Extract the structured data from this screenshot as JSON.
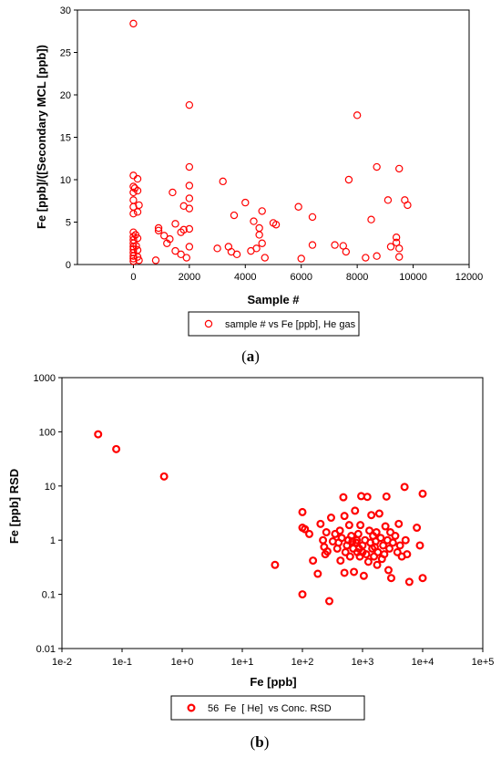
{
  "chart_data": [
    {
      "panel": "(a)",
      "panel_letter": "a",
      "type": "scatter",
      "xlabel": "Sample #",
      "ylabel": "Fe [ppb]/([Secondary MCL [ppb])",
      "xlim": [
        -2000,
        12000
      ],
      "ylim": [
        0,
        30
      ],
      "xticks": [
        "0",
        "2000",
        "4000",
        "6000",
        "8000",
        "10000",
        "12000"
      ],
      "yticks": [
        "0",
        "5",
        "10",
        "15",
        "20",
        "25",
        "30"
      ],
      "legend": "sample # vs Fe [ppb], He gas",
      "legend_position": "bottom-center",
      "marker_color": "#ff0000",
      "grid": false,
      "points": [
        [
          0,
          28.4
        ],
        [
          0,
          10.5
        ],
        [
          0,
          9.2
        ],
        [
          0,
          8.5
        ],
        [
          0,
          7.6
        ],
        [
          0,
          6.8
        ],
        [
          0,
          6.0
        ],
        [
          0,
          3.8
        ],
        [
          0,
          3.3
        ],
        [
          0,
          2.9
        ],
        [
          0,
          2.5
        ],
        [
          0,
          2.1
        ],
        [
          0,
          1.8
        ],
        [
          0,
          1.4
        ],
        [
          0,
          1.0
        ],
        [
          0,
          0.7
        ],
        [
          0,
          0.4
        ],
        [
          50,
          9.0
        ],
        [
          80,
          3.5
        ],
        [
          100,
          2.2
        ],
        [
          150,
          10.1
        ],
        [
          150,
          8.7
        ],
        [
          150,
          6.2
        ],
        [
          150,
          3.1
        ],
        [
          150,
          1.7
        ],
        [
          150,
          0.9
        ],
        [
          200,
          7.0
        ],
        [
          200,
          0.5
        ],
        [
          800,
          0.5
        ],
        [
          900,
          4.0
        ],
        [
          900,
          4.3
        ],
        [
          1100,
          3.4
        ],
        [
          1200,
          2.5
        ],
        [
          1300,
          3.0
        ],
        [
          1400,
          8.5
        ],
        [
          1500,
          4.8
        ],
        [
          1500,
          1.6
        ],
        [
          1700,
          1.2
        ],
        [
          1700,
          3.8
        ],
        [
          1800,
          4.1
        ],
        [
          1800,
          6.9
        ],
        [
          1900,
          0.8
        ],
        [
          2000,
          18.8
        ],
        [
          2000,
          11.5
        ],
        [
          2000,
          9.3
        ],
        [
          2000,
          7.8
        ],
        [
          2000,
          6.6
        ],
        [
          2000,
          4.2
        ],
        [
          2000,
          2.1
        ],
        [
          3000,
          1.9
        ],
        [
          3200,
          9.8
        ],
        [
          3400,
          2.1
        ],
        [
          3500,
          1.5
        ],
        [
          3600,
          5.8
        ],
        [
          3700,
          1.2
        ],
        [
          4000,
          7.3
        ],
        [
          4200,
          1.6
        ],
        [
          4300,
          5.1
        ],
        [
          4400,
          1.9
        ],
        [
          4500,
          3.5
        ],
        [
          4500,
          4.3
        ],
        [
          4600,
          6.3
        ],
        [
          4600,
          2.5
        ],
        [
          4700,
          0.8
        ],
        [
          5000,
          4.9
        ],
        [
          5100,
          4.7
        ],
        [
          5900,
          6.8
        ],
        [
          6000,
          0.7
        ],
        [
          6400,
          2.3
        ],
        [
          6400,
          5.6
        ],
        [
          7200,
          2.3
        ],
        [
          7500,
          2.2
        ],
        [
          7600,
          1.5
        ],
        [
          7700,
          10.0
        ],
        [
          8000,
          17.6
        ],
        [
          8300,
          0.8
        ],
        [
          8500,
          5.3
        ],
        [
          8700,
          11.5
        ],
        [
          8700,
          1.0
        ],
        [
          9100,
          7.6
        ],
        [
          9200,
          2.1
        ],
        [
          9400,
          3.2
        ],
        [
          9400,
          2.6
        ],
        [
          9500,
          11.3
        ],
        [
          9500,
          1.9
        ],
        [
          9500,
          0.9
        ],
        [
          9700,
          7.6
        ],
        [
          9800,
          7.0
        ]
      ]
    },
    {
      "panel": "(b)",
      "panel_letter": "b",
      "type": "scatter",
      "xscale": "log",
      "yscale": "log",
      "xlabel": "Fe [ppb]",
      "ylabel": "Fe [ppb] RSD",
      "xlim": [
        0.01,
        100000
      ],
      "ylim": [
        0.01,
        1000
      ],
      "xticks": [
        "1e-2",
        "1e-1",
        "1e+0",
        "1e+1",
        "1e+2",
        "1e+3",
        "1e+4",
        "1e+5"
      ],
      "yticks": [
        "1000",
        "100",
        "10",
        "1",
        "0.1",
        "0.01"
      ],
      "legend": "56  Fe  [ He]  vs Conc. RSD",
      "legend_position": "bottom-center",
      "marker_color": "#ff0000",
      "grid": false,
      "points": [
        [
          0.04,
          90
        ],
        [
          0.08,
          48
        ],
        [
          0.5,
          15
        ],
        [
          35,
          0.35
        ],
        [
          100,
          3.3
        ],
        [
          100,
          1.7
        ],
        [
          110,
          1.6
        ],
        [
          100,
          0.1
        ],
        [
          130,
          1.3
        ],
        [
          150,
          0.42
        ],
        [
          180,
          0.24
        ],
        [
          200,
          2.0
        ],
        [
          220,
          1.0
        ],
        [
          230,
          0.75
        ],
        [
          240,
          0.55
        ],
        [
          250,
          1.4
        ],
        [
          260,
          0.62
        ],
        [
          280,
          0.075
        ],
        [
          300,
          2.6
        ],
        [
          320,
          0.95
        ],
        [
          350,
          1.3
        ],
        [
          380,
          0.7
        ],
        [
          400,
          0.9
        ],
        [
          420,
          1.5
        ],
        [
          430,
          0.42
        ],
        [
          450,
          1.1
        ],
        [
          480,
          6.2
        ],
        [
          500,
          0.25
        ],
        [
          500,
          2.8
        ],
        [
          520,
          0.6
        ],
        [
          550,
          0.8
        ],
        [
          580,
          1.0
        ],
        [
          600,
          1.9
        ],
        [
          620,
          0.5
        ],
        [
          650,
          1.2
        ],
        [
          680,
          0.95
        ],
        [
          700,
          0.7
        ],
        [
          720,
          0.26
        ],
        [
          750,
          3.5
        ],
        [
          780,
          0.9
        ],
        [
          800,
          1.0
        ],
        [
          820,
          0.6
        ],
        [
          850,
          1.3
        ],
        [
          880,
          0.7
        ],
        [
          900,
          0.5
        ],
        [
          920,
          1.9
        ],
        [
          950,
          6.5
        ],
        [
          1000,
          0.8
        ],
        [
          1000,
          0.6
        ],
        [
          1050,
          0.22
        ],
        [
          1100,
          1.0
        ],
        [
          1150,
          0.55
        ],
        [
          1200,
          6.3
        ],
        [
          1250,
          0.4
        ],
        [
          1300,
          1.5
        ],
        [
          1350,
          0.9
        ],
        [
          1400,
          2.9
        ],
        [
          1450,
          0.7
        ],
        [
          1500,
          1.2
        ],
        [
          1550,
          0.5
        ],
        [
          1600,
          0.75
        ],
        [
          1650,
          0.95
        ],
        [
          1700,
          1.4
        ],
        [
          1750,
          0.35
        ],
        [
          1800,
          0.6
        ],
        [
          1900,
          3.1
        ],
        [
          2000,
          1.1
        ],
        [
          2100,
          0.45
        ],
        [
          2200,
          0.8
        ],
        [
          2300,
          0.55
        ],
        [
          2400,
          1.8
        ],
        [
          2500,
          6.4
        ],
        [
          2600,
          1.0
        ],
        [
          2700,
          0.28
        ],
        [
          2800,
          0.7
        ],
        [
          2900,
          1.4
        ],
        [
          3000,
          0.2
        ],
        [
          3200,
          0.9
        ],
        [
          3500,
          1.2
        ],
        [
          3800,
          0.6
        ],
        [
          4000,
          2.0
        ],
        [
          4200,
          0.8
        ],
        [
          4500,
          0.5
        ],
        [
          5000,
          9.6
        ],
        [
          5200,
          1.0
        ],
        [
          5500,
          0.55
        ],
        [
          6000,
          0.17
        ],
        [
          8000,
          1.7
        ],
        [
          9000,
          0.8
        ],
        [
          10000,
          0.2
        ],
        [
          10000,
          7.2
        ]
      ]
    }
  ]
}
